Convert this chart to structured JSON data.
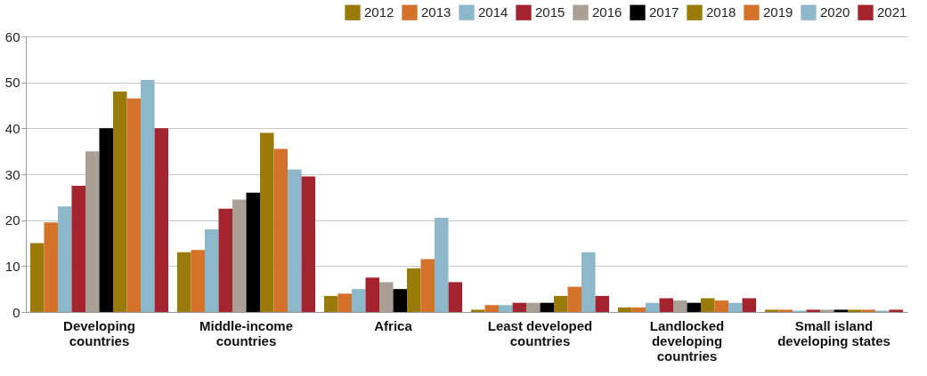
{
  "chart_data": {
    "type": "bar",
    "categories": [
      "Developing countries",
      "Middle-income countries",
      "Africa",
      "Least developed countries",
      "Landlocked developing countries",
      "Small island developing states"
    ],
    "series": [
      {
        "name": "2012",
        "color": "#9a7b0a",
        "values": [
          15,
          13,
          3.5,
          0.5,
          1,
          0.5
        ]
      },
      {
        "name": "2013",
        "color": "#d4722a",
        "values": [
          19.5,
          13.5,
          4,
          1.5,
          1,
          0.5
        ]
      },
      {
        "name": "2014",
        "color": "#8db8cc",
        "values": [
          23,
          18,
          5,
          1.5,
          2,
          0.3
        ]
      },
      {
        "name": "2015",
        "color": "#a3232f",
        "values": [
          27.5,
          22.5,
          7.5,
          2,
          3,
          0.5
        ]
      },
      {
        "name": "2016",
        "color": "#aaa095",
        "values": [
          35,
          24.5,
          6.5,
          2,
          2.5,
          0.5
        ]
      },
      {
        "name": "2017",
        "color": "#000000",
        "values": [
          40,
          26,
          5,
          2,
          2,
          0.5
        ]
      },
      {
        "name": "2018",
        "color": "#9a7b0a",
        "values": [
          48,
          39,
          9.5,
          3.5,
          3,
          0.5
        ]
      },
      {
        "name": "2019",
        "color": "#d4722a",
        "values": [
          46.5,
          35.5,
          11.5,
          5.5,
          2.5,
          0.5
        ]
      },
      {
        "name": "2020",
        "color": "#8db8cc",
        "values": [
          50.5,
          31,
          20.5,
          13,
          2,
          0.3
        ]
      },
      {
        "name": "2021",
        "color": "#a3232f",
        "values": [
          40,
          29.5,
          6.5,
          3.5,
          3,
          0.5
        ]
      }
    ],
    "ylim": [
      0,
      60
    ],
    "yticks": [
      0,
      10,
      20,
      30,
      40,
      50,
      60
    ],
    "grid": "y",
    "legend": "top right"
  }
}
